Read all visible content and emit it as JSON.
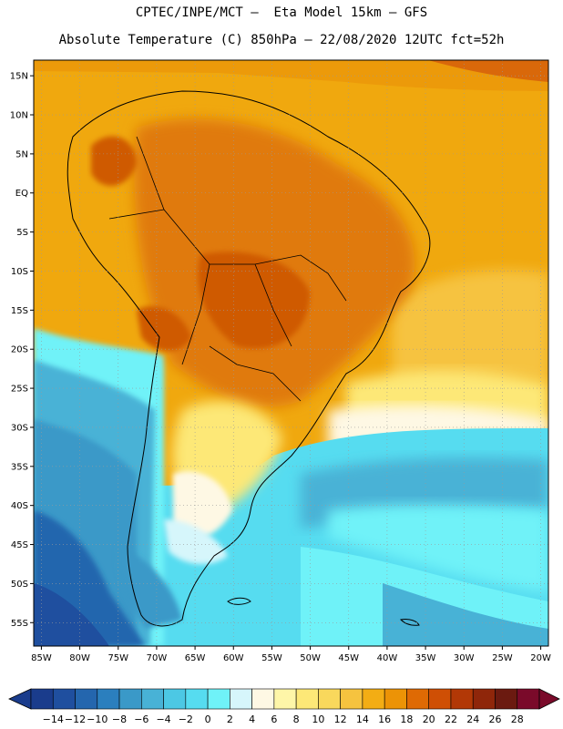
{
  "header": {
    "line1": "CPTEC/INPE/MCT –  Eta Model 15km – GFS",
    "line2": "Absolute Temperature (C) 850hPa – 22/08/2020 12UTC fct=52h"
  },
  "chart_data": {
    "type": "heatmap",
    "title": "CPTEC/INPE/MCT – Eta Model 15km – GFS",
    "subtitle": "Absolute Temperature (C) 850hPa – 22/08/2020 12UTC fct=52h",
    "variable": "Absolute Temperature (C) 850hPa",
    "model": "Eta Model 15km – GFS",
    "init": "22/08/2020 12UTC",
    "forecast_hour": "fct=52h",
    "x": {
      "label": "",
      "range": [
        -86,
        -19
      ],
      "ticks": [
        {
          "v": -85,
          "label": "85W"
        },
        {
          "v": -80,
          "label": "80W"
        },
        {
          "v": -75,
          "label": "75W"
        },
        {
          "v": -70,
          "label": "70W"
        },
        {
          "v": -65,
          "label": "65W"
        },
        {
          "v": -60,
          "label": "60W"
        },
        {
          "v": -55,
          "label": "55W"
        },
        {
          "v": -50,
          "label": "50W"
        },
        {
          "v": -45,
          "label": "45W"
        },
        {
          "v": -40,
          "label": "40W"
        },
        {
          "v": -35,
          "label": "35W"
        },
        {
          "v": -30,
          "label": "30W"
        },
        {
          "v": -25,
          "label": "25W"
        },
        {
          "v": -20,
          "label": "20W"
        }
      ]
    },
    "y": {
      "label": "",
      "range": [
        -58,
        17
      ],
      "ticks": [
        {
          "v": 15,
          "label": "15N"
        },
        {
          "v": 10,
          "label": "10N"
        },
        {
          "v": 5,
          "label": "5N"
        },
        {
          "v": 0,
          "label": "EQ"
        },
        {
          "v": -5,
          "label": "5S"
        },
        {
          "v": -10,
          "label": "10S"
        },
        {
          "v": -15,
          "label": "15S"
        },
        {
          "v": -20,
          "label": "20S"
        },
        {
          "v": -25,
          "label": "25S"
        },
        {
          "v": -30,
          "label": "30S"
        },
        {
          "v": -35,
          "label": "35S"
        },
        {
          "v": -40,
          "label": "40S"
        },
        {
          "v": -45,
          "label": "45S"
        },
        {
          "v": -50,
          "label": "50S"
        },
        {
          "v": -55,
          "label": "55S"
        }
      ]
    },
    "grid": true,
    "colorbar": {
      "labels": [
        "-14",
        "-12",
        "-10",
        "-8",
        "-6",
        "-4",
        "-2",
        "0",
        "2",
        "4",
        "6",
        "8",
        "10",
        "12",
        "14",
        "16",
        "18",
        "20",
        "22",
        "24",
        "26",
        "28"
      ],
      "colors": [
        "#1a3c8c",
        "#1f4f9f",
        "#2466ae",
        "#2b7fbe",
        "#3a99c8",
        "#48b2d6",
        "#4cc8e4",
        "#56dcf0",
        "#6ff2f8",
        "#d6f6fb",
        "#fef8e4",
        "#fef6a8",
        "#fde877",
        "#f9d85c",
        "#f6c33f",
        "#f3ad14",
        "#ec9306",
        "#df6a04",
        "#cf4f05",
        "#b23806",
        "#8f260a",
        "#6b1a10",
        "#7a0a2a"
      ],
      "below_color": "#1a3c8c",
      "above_color": "#7a0a2a"
    }
  }
}
